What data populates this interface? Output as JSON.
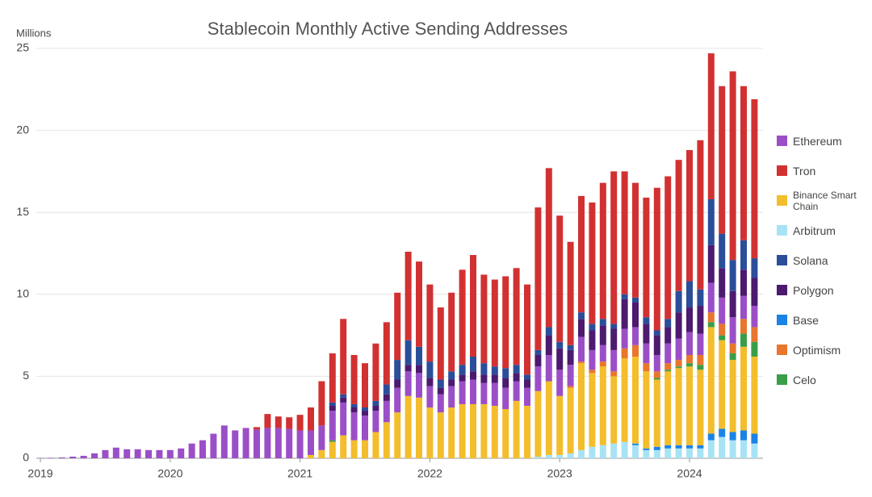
{
  "chart_data": {
    "type": "stacked_bar",
    "title": "Stablecoin Monthly Active Sending Addresses",
    "y_label": "Millions",
    "ylim": [
      0,
      25
    ],
    "yticks": [
      0,
      5,
      10,
      15,
      20,
      25
    ],
    "grid": true,
    "legend": "right",
    "categories": [
      "2019",
      null,
      null,
      null,
      null,
      null,
      null,
      null,
      null,
      null,
      null,
      null,
      "2020",
      null,
      null,
      null,
      null,
      null,
      null,
      null,
      null,
      null,
      null,
      null,
      "2021",
      null,
      null,
      null,
      null,
      null,
      null,
      null,
      null,
      null,
      null,
      null,
      "2022",
      null,
      null,
      null,
      null,
      null,
      null,
      null,
      null,
      null,
      null,
      null,
      "2023",
      null,
      null,
      null,
      null,
      null,
      null,
      null,
      null,
      null,
      null,
      null,
      "2024",
      null,
      null,
      null,
      null,
      null,
      null
    ],
    "series": [
      {
        "name": "Ethereum",
        "color": "#9b4fc7",
        "values": [
          0.02,
          0.03,
          0.05,
          0.1,
          0.15,
          0.3,
          0.5,
          0.65,
          0.55,
          0.55,
          0.5,
          0.5,
          0.5,
          0.6,
          0.9,
          1.1,
          1.5,
          2.0,
          1.7,
          1.85,
          1.75,
          1.85,
          1.85,
          1.8,
          1.7,
          1.5,
          1.5,
          1.8,
          2.0,
          1.7,
          1.5,
          1.3,
          1.3,
          1.5,
          1.5,
          1.5,
          1.3,
          1.1,
          1.3,
          1.4,
          1.5,
          1.3,
          1.4,
          1.3,
          1.2,
          1.1,
          1.5,
          1.6,
          1.6,
          1.3,
          1.5,
          1.2,
          1.0,
          1.3,
          1.2,
          1.1,
          1.2,
          1.0,
          1.2,
          1.3,
          1.4,
          1.3,
          1.8,
          1.6,
          1.6,
          1.4,
          1.3
        ]
      },
      {
        "name": "Tron",
        "color": "#d23131",
        "values": [
          0,
          0,
          0,
          0,
          0,
          0,
          0,
          0,
          0,
          0,
          0,
          0,
          0,
          0,
          0,
          0,
          0,
          0,
          0,
          0,
          0.15,
          0.85,
          0.7,
          0.7,
          0.95,
          1.4,
          2.7,
          3.0,
          4.6,
          3.0,
          2.7,
          3.5,
          3.8,
          4.1,
          5.4,
          5.2,
          4.7,
          4.4,
          4.8,
          5.8,
          6.2,
          5.4,
          5.3,
          5.6,
          5.9,
          5.5,
          8.7,
          9.7,
          7.7,
          6.3,
          7.1,
          7.4,
          8.3,
          9.3,
          7.5,
          7.0,
          7.3,
          8.7,
          8.7,
          8.0,
          8.0,
          9.1,
          8.9,
          9.0,
          11.5,
          9.4,
          9.7
        ]
      },
      {
        "name": "Binance Smart Chain",
        "color": "#f3bd2c",
        "values": [
          0,
          0,
          0,
          0,
          0,
          0,
          0,
          0,
          0,
          0,
          0,
          0,
          0,
          0,
          0,
          0,
          0,
          0,
          0,
          0,
          0,
          0,
          0,
          0,
          0,
          0.2,
          0.5,
          1.0,
          1.4,
          1.1,
          1.1,
          1.6,
          2.2,
          2.8,
          3.8,
          3.7,
          3.1,
          2.8,
          3.1,
          3.3,
          3.3,
          3.3,
          3.2,
          3.0,
          3.5,
          3.2,
          4.0,
          4.5,
          3.6,
          4.0,
          5.3,
          4.5,
          4.8,
          4.1,
          5.1,
          5.3,
          4.7,
          4.1,
          4.5,
          4.7,
          4.8,
          4.6,
          6.5,
          5.4,
          4.4,
          5.1,
          4.7
        ]
      },
      {
        "name": "Arbitrum",
        "color": "#a8e3f5",
        "values": [
          0,
          0,
          0,
          0,
          0,
          0,
          0,
          0,
          0,
          0,
          0,
          0,
          0,
          0,
          0,
          0,
          0,
          0,
          0,
          0,
          0,
          0,
          0,
          0,
          0,
          0,
          0,
          0,
          0,
          0,
          0,
          0,
          0,
          0,
          0,
          0,
          0,
          0,
          0,
          0,
          0,
          0,
          0,
          0,
          0,
          0,
          0.1,
          0.2,
          0.2,
          0.3,
          0.5,
          0.7,
          0.8,
          0.9,
          1.0,
          0.8,
          0.5,
          0.5,
          0.6,
          0.6,
          0.6,
          0.6,
          1.1,
          1.3,
          1.1,
          1.1,
          0.9
        ]
      },
      {
        "name": "Solana",
        "color": "#2a4e9a",
        "values": [
          0,
          0,
          0,
          0,
          0,
          0,
          0,
          0,
          0,
          0,
          0,
          0,
          0,
          0,
          0,
          0,
          0,
          0,
          0,
          0,
          0,
          0,
          0,
          0,
          0,
          0,
          0,
          0.2,
          0.2,
          0.2,
          0.2,
          0.3,
          0.6,
          1.2,
          1.5,
          1.1,
          1.0,
          0.5,
          0.5,
          0.6,
          0.9,
          0.7,
          0.5,
          0.6,
          0.5,
          0.3,
          0.3,
          0.5,
          0.4,
          0.3,
          0.4,
          0.4,
          0.4,
          0.3,
          0.3,
          0.3,
          0.4,
          0.3,
          0.5,
          1.3,
          1.6,
          1.0,
          2.8,
          2.1,
          1.9,
          1.8,
          1.2
        ]
      },
      {
        "name": "Polygon",
        "color": "#4c1a6e",
        "values": [
          0,
          0,
          0,
          0,
          0,
          0,
          0,
          0,
          0,
          0,
          0,
          0,
          0,
          0,
          0,
          0,
          0,
          0,
          0,
          0,
          0,
          0,
          0,
          0,
          0,
          0,
          0,
          0.3,
          0.3,
          0.3,
          0.3,
          0.3,
          0.4,
          0.5,
          0.4,
          0.5,
          0.5,
          0.4,
          0.4,
          0.4,
          0.5,
          0.5,
          0.5,
          0.6,
          0.5,
          0.5,
          0.7,
          1.2,
          1.3,
          0.9,
          1.1,
          1.2,
          1.2,
          1.3,
          1.8,
          1.5,
          1.2,
          1.2,
          1.0,
          1.6,
          1.5,
          1.7,
          2.3,
          1.8,
          1.6,
          1.6,
          1.7
        ]
      },
      {
        "name": "Base",
        "color": "#1b83e6",
        "values": [
          0,
          0,
          0,
          0,
          0,
          0,
          0,
          0,
          0,
          0,
          0,
          0,
          0,
          0,
          0,
          0,
          0,
          0,
          0,
          0,
          0,
          0,
          0,
          0,
          0,
          0,
          0,
          0,
          0,
          0,
          0,
          0,
          0,
          0,
          0,
          0,
          0,
          0,
          0,
          0,
          0,
          0,
          0,
          0,
          0,
          0,
          0,
          0,
          0,
          0,
          0,
          0,
          0,
          0,
          0,
          0.1,
          0.1,
          0.2,
          0.2,
          0.2,
          0.2,
          0.2,
          0.4,
          0.5,
          0.5,
          0.6,
          0.6
        ]
      },
      {
        "name": "Optimism",
        "color": "#e8762c",
        "values": [
          0,
          0,
          0,
          0,
          0,
          0,
          0,
          0,
          0,
          0,
          0,
          0,
          0,
          0,
          0,
          0,
          0,
          0,
          0,
          0,
          0,
          0,
          0,
          0,
          0,
          0,
          0,
          0,
          0,
          0,
          0,
          0,
          0,
          0,
          0,
          0,
          0,
          0,
          0,
          0,
          0,
          0,
          0,
          0,
          0,
          0,
          0,
          0,
          0,
          0.1,
          0.1,
          0.2,
          0.3,
          0.3,
          0.6,
          0.7,
          0.5,
          0.4,
          0.4,
          0.4,
          0.5,
          0.6,
          0.6,
          0.7,
          0.6,
          0.9,
          0.9
        ]
      },
      {
        "name": "Celo",
        "color": "#3a9e48",
        "values": [
          0,
          0,
          0,
          0,
          0,
          0,
          0,
          0,
          0,
          0,
          0,
          0,
          0,
          0,
          0,
          0,
          0,
          0,
          0,
          0,
          0,
          0,
          0,
          0,
          0,
          0,
          0,
          0.1,
          0,
          0,
          0,
          0,
          0,
          0,
          0,
          0,
          0,
          0,
          0,
          0,
          0,
          0,
          0,
          0,
          0,
          0,
          0,
          0,
          0,
          0,
          0,
          0,
          0,
          0,
          0,
          0,
          0,
          0.1,
          0.1,
          0.1,
          0.2,
          0.3,
          0.3,
          0.3,
          0.4,
          0.8,
          0.9
        ]
      }
    ]
  }
}
